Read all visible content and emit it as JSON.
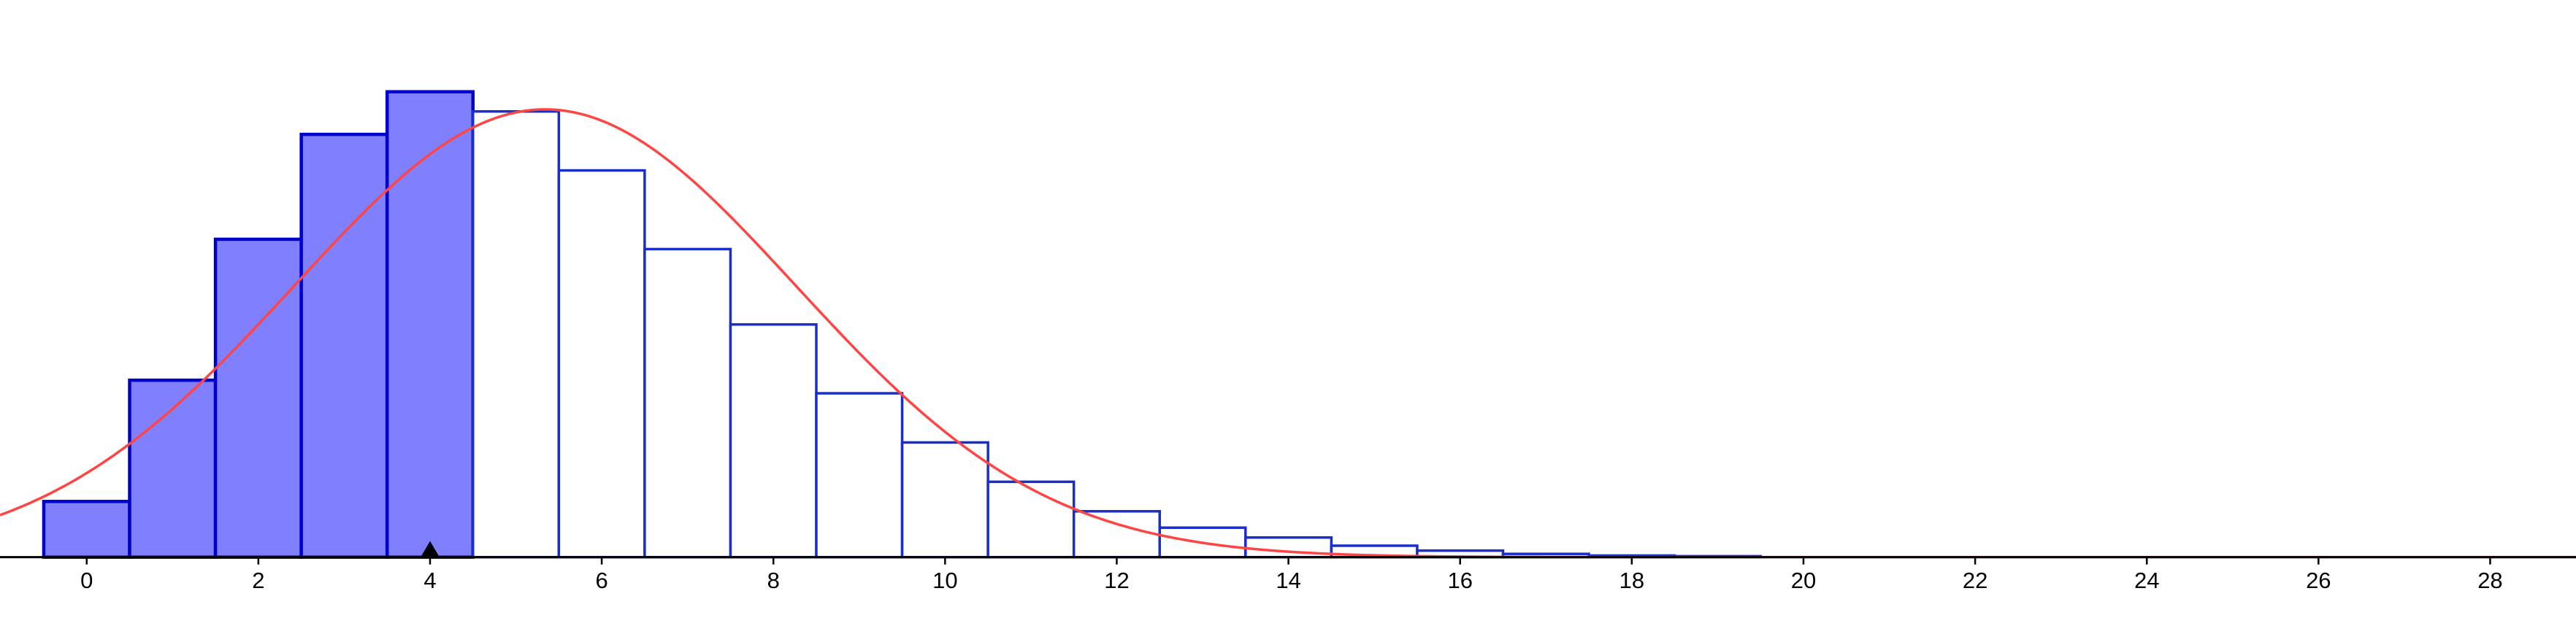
{
  "chart_data": {
    "type": "histogram",
    "x": [
      0,
      1,
      2,
      3,
      4,
      5,
      6,
      7,
      8,
      9,
      10,
      11,
      12,
      13,
      14,
      15,
      16,
      17,
      18,
      19
    ],
    "values": [
      0.017,
      0.054,
      0.097,
      0.129,
      0.142,
      0.136,
      0.118,
      0.094,
      0.071,
      0.05,
      0.035,
      0.023,
      0.014,
      0.009,
      0.006,
      0.0035,
      0.002,
      0.001,
      0.0005,
      0.0003
    ],
    "shaded_through": 4,
    "color": "#8080ff",
    "edge_color": "#1a2ecc",
    "xlim": [
      -1.01,
      29.0
    ],
    "ylim": [
      -0.021,
      0.17
    ],
    "xticks": [
      0,
      2,
      4,
      6,
      8,
      10,
      12,
      14,
      16,
      18,
      20,
      22,
      24,
      26,
      28
    ],
    "curve": {
      "mean": 5.34,
      "sd": 2.92,
      "color": "#ff4444"
    }
  }
}
